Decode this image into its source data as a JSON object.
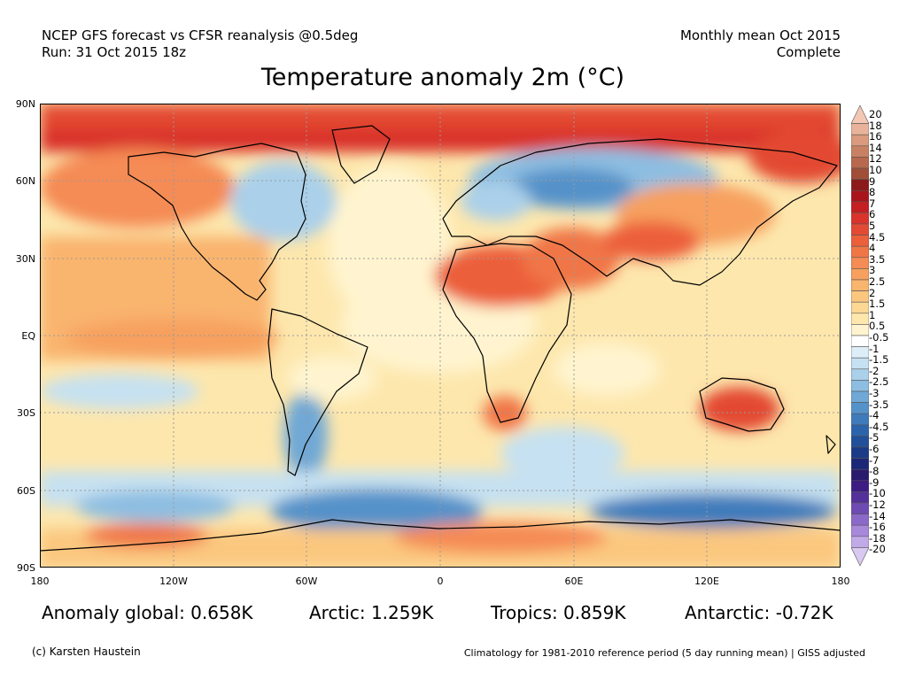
{
  "header": {
    "line1": "NCEP GFS forecast vs CFSR reanalysis @0.5deg",
    "line2": "Run: 31 Oct 2015 18z",
    "right_line1": "Monthly mean Oct 2015",
    "right_line2": "Complete"
  },
  "title": "Temperature anomaly 2m (°C)",
  "lat_labels": [
    "90N",
    "60N",
    "30N",
    "EQ",
    "30S",
    "60S",
    "90S"
  ],
  "lon_labels": [
    "180",
    "120W",
    "60W",
    "0",
    "60E",
    "120E",
    "180"
  ],
  "stats": {
    "global": "Anomaly global: 0.658K",
    "arctic": "Arctic: 1.259K",
    "tropics": "Tropics: 0.859K",
    "antarctic": "Antarctic: -0.72K"
  },
  "footer": {
    "left": "(c) Karsten Haustein",
    "right": "Climatology for 1981-2010 reference period (5 day running mean) | GISS adjusted"
  },
  "legend": [
    {
      "label": "20",
      "color": "#f3c7b4"
    },
    {
      "label": "18",
      "color": "#e9b39b"
    },
    {
      "label": "16",
      "color": "#d99a7e"
    },
    {
      "label": "14",
      "color": "#c98163"
    },
    {
      "label": "12",
      "color": "#b8684c"
    },
    {
      "label": "10",
      "color": "#a14e38"
    },
    {
      "label": "9",
      "color": "#8c1a1a"
    },
    {
      "label": "8",
      "color": "#a8161c"
    },
    {
      "label": "7",
      "color": "#c41f22"
    },
    {
      "label": "6",
      "color": "#d9332b"
    },
    {
      "label": "5",
      "color": "#e34a33"
    },
    {
      "label": "4.5",
      "color": "#ec5f3b"
    },
    {
      "label": "4",
      "color": "#f07646"
    },
    {
      "label": "3.5",
      "color": "#f58b55"
    },
    {
      "label": "3",
      "color": "#f7a05f"
    },
    {
      "label": "2.5",
      "color": "#f9b46e"
    },
    {
      "label": "2",
      "color": "#fbc77f"
    },
    {
      "label": "1.5",
      "color": "#fcd894"
    },
    {
      "label": "1",
      "color": "#fde7ad"
    },
    {
      "label": "0.5",
      "color": "#fff4cf"
    },
    {
      "label": "-0.5",
      "color": "#ffffff"
    },
    {
      "label": "-1",
      "color": "#deeef8"
    },
    {
      "label": "-1.5",
      "color": "#c6e1f1"
    },
    {
      "label": "-2",
      "color": "#aad0ea"
    },
    {
      "label": "-2.5",
      "color": "#8dbde1"
    },
    {
      "label": "-3",
      "color": "#70a8d6"
    },
    {
      "label": "-3.5",
      "color": "#5592c9"
    },
    {
      "label": "-4",
      "color": "#3f7bbb"
    },
    {
      "label": "-4.5",
      "color": "#2c64ab"
    },
    {
      "label": "-5",
      "color": "#214f9a"
    },
    {
      "label": "-6",
      "color": "#1b3a88"
    },
    {
      "label": "-7",
      "color": "#1c2778"
    },
    {
      "label": "-8",
      "color": "#2a1a6e"
    },
    {
      "label": "-9",
      "color": "#3d1d82"
    },
    {
      "label": "-10",
      "color": "#54309a"
    },
    {
      "label": "-12",
      "color": "#6e4bb2"
    },
    {
      "label": "-14",
      "color": "#8a69c8"
    },
    {
      "label": "-16",
      "color": "#a788da"
    },
    {
      "label": "-18",
      "color": "#c2a9e8"
    },
    {
      "label": "-20",
      "color": "#d9c8f2"
    }
  ],
  "colors": {
    "warm_strong": "#e34a33",
    "warm_mid": "#f7a05f",
    "warm_light": "#fbc77f",
    "neutral": "#fff4cf",
    "cool_light": "#aad0ea",
    "cool_mid": "#5592c9",
    "cool_strong": "#214f9a"
  }
}
